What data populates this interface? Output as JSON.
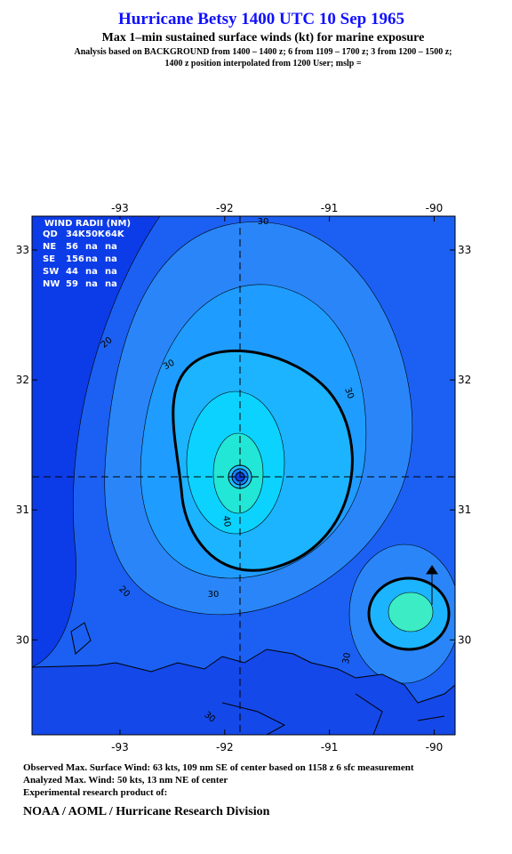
{
  "header": {
    "title": "Hurricane Betsy 1400 UTC 10 Sep 1965",
    "subtitle": "Max 1–min sustained surface winds (kt) for marine exposure",
    "analysis_lines": [
      "Analysis based on  BACKGROUND from 1400 – 1400 z;  6 from 1109 – 1700 z;  3 from 1200 – 1500 z;",
      "1400 z position interpolated from 1200 User; mslp ="
    ]
  },
  "map": {
    "xlim": [
      -93.84,
      -89.8
    ],
    "ylim": [
      29.27,
      33.26
    ],
    "xticks": [
      -93,
      -92,
      -91,
      -90
    ],
    "yticks": [
      30,
      31,
      32,
      33
    ],
    "wind_radii": {
      "title": "WIND RADII (NM)",
      "columns": [
        "QD",
        "34K",
        "50K",
        "64K"
      ],
      "rows": [
        [
          "NE",
          56,
          "na",
          "na"
        ],
        [
          "SE",
          156,
          "na",
          "na"
        ],
        [
          "SW",
          44,
          "na",
          "na"
        ],
        [
          "NW",
          59,
          "na",
          "na"
        ]
      ]
    },
    "contour_labels": [
      30,
      20,
      30,
      30,
      40,
      30,
      20,
      30,
      30
    ]
  },
  "footer": {
    "lines": [
      "Observed Max. Surface Wind: 63 kts, 109 nm SE of center based on 1158 z 6 sfc measurement",
      "Analyzed Max. Wind: 50 kts, 13 nm NE of center",
      "Experimental research product of:"
    ],
    "org": "NOAA / AOML / Hurricane Research Division"
  }
}
